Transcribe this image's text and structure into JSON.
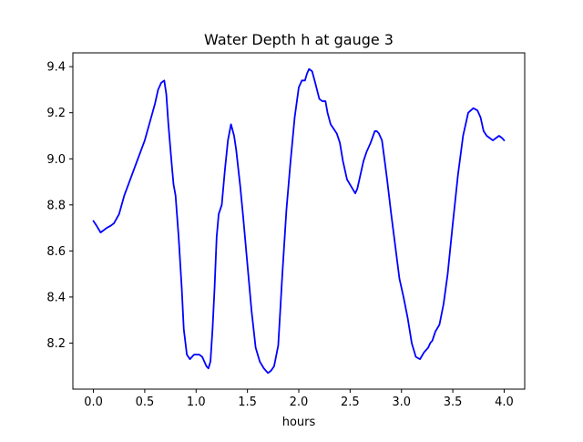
{
  "chart_data": {
    "type": "line",
    "title": "Water Depth h at gauge 3",
    "xlabel": "hours",
    "ylabel": "",
    "xlim": [
      -0.2,
      4.2
    ],
    "ylim": [
      8.0,
      9.46
    ],
    "grid": false,
    "legend": "none",
    "x_ticks": [
      0.0,
      0.5,
      1.0,
      1.5,
      2.0,
      2.5,
      3.0,
      3.5,
      4.0
    ],
    "x_tick_labels": [
      "0.0",
      "0.5",
      "1.0",
      "1.5",
      "2.0",
      "2.5",
      "3.0",
      "3.5",
      "4.0"
    ],
    "y_ticks": [
      8.2,
      8.4,
      8.6,
      8.8,
      9.0,
      9.2,
      9.4
    ],
    "y_tick_labels": [
      "8.2",
      "8.4",
      "8.6",
      "8.8",
      "9.0",
      "9.2",
      "9.4"
    ],
    "series": [
      {
        "color": "#0000ff",
        "x": [
          0.0,
          0.03,
          0.07,
          0.1,
          0.13,
          0.17,
          0.2,
          0.25,
          0.3,
          0.35,
          0.4,
          0.45,
          0.5,
          0.55,
          0.6,
          0.63,
          0.66,
          0.69,
          0.71,
          0.73,
          0.76,
          0.78,
          0.8,
          0.83,
          0.86,
          0.88,
          0.91,
          0.94,
          0.96,
          0.98,
          1.0,
          1.03,
          1.06,
          1.1,
          1.12,
          1.14,
          1.16,
          1.18,
          1.2,
          1.22,
          1.25,
          1.28,
          1.31,
          1.34,
          1.37,
          1.39,
          1.41,
          1.43,
          1.46,
          1.5,
          1.54,
          1.58,
          1.62,
          1.66,
          1.7,
          1.73,
          1.76,
          1.8,
          1.84,
          1.88,
          1.92,
          1.96,
          2.0,
          2.03,
          2.06,
          2.08,
          2.1,
          2.13,
          2.16,
          2.2,
          2.23,
          2.26,
          2.28,
          2.31,
          2.34,
          2.37,
          2.4,
          2.43,
          2.47,
          2.51,
          2.55,
          2.57,
          2.6,
          2.63,
          2.66,
          2.7,
          2.74,
          2.76,
          2.78,
          2.81,
          2.84,
          2.86,
          2.9,
          2.94,
          2.98,
          3.02,
          3.06,
          3.1,
          3.14,
          3.18,
          3.22,
          3.26,
          3.28,
          3.3,
          3.33,
          3.37,
          3.41,
          3.45,
          3.5,
          3.55,
          3.6,
          3.65,
          3.7,
          3.74,
          3.77,
          3.8,
          3.83,
          3.86,
          3.89,
          3.92,
          3.95,
          3.98,
          4.0
        ],
        "y": [
          8.73,
          8.71,
          8.68,
          8.69,
          8.7,
          8.71,
          8.72,
          8.76,
          8.84,
          8.9,
          8.96,
          9.02,
          9.08,
          9.16,
          9.24,
          9.3,
          9.33,
          9.34,
          9.28,
          9.15,
          8.99,
          8.89,
          8.84,
          8.66,
          8.44,
          8.26,
          8.15,
          8.13,
          8.14,
          8.15,
          8.15,
          8.15,
          8.14,
          8.1,
          8.09,
          8.12,
          8.26,
          8.44,
          8.66,
          8.76,
          8.8,
          8.95,
          9.08,
          9.15,
          9.1,
          9.04,
          8.96,
          8.88,
          8.74,
          8.54,
          8.34,
          8.18,
          8.12,
          8.09,
          8.07,
          8.08,
          8.1,
          8.19,
          8.5,
          8.78,
          8.99,
          9.18,
          9.31,
          9.34,
          9.34,
          9.37,
          9.39,
          9.38,
          9.33,
          9.26,
          9.25,
          9.25,
          9.2,
          9.15,
          9.13,
          9.11,
          9.07,
          8.99,
          8.91,
          8.88,
          8.85,
          8.87,
          8.93,
          8.99,
          9.03,
          9.07,
          9.12,
          9.12,
          9.11,
          9.08,
          8.98,
          8.91,
          8.76,
          8.62,
          8.48,
          8.4,
          8.31,
          8.2,
          8.14,
          8.13,
          8.16,
          8.18,
          8.2,
          8.21,
          8.25,
          8.28,
          8.37,
          8.5,
          8.72,
          8.93,
          9.1,
          9.2,
          9.22,
          9.21,
          9.18,
          9.12,
          9.1,
          9.09,
          9.08,
          9.09,
          9.1,
          9.09,
          9.08
        ]
      }
    ]
  }
}
